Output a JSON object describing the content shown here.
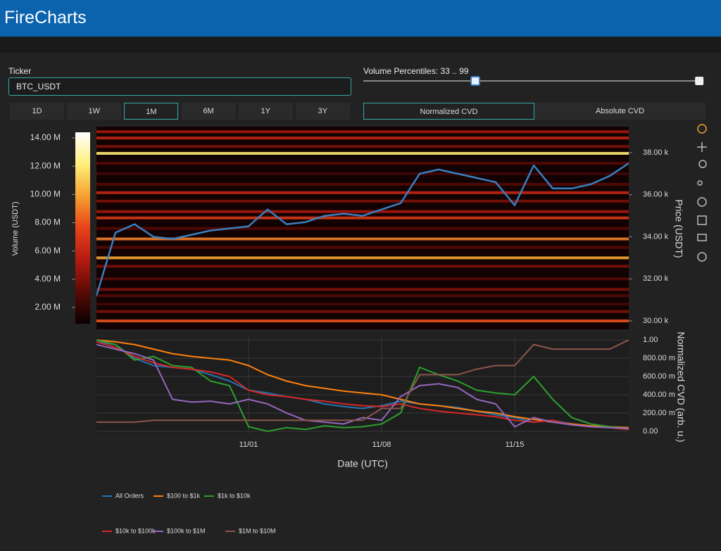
{
  "header": {
    "title": "FireCharts"
  },
  "controls": {
    "ticker_label": "Ticker",
    "ticker_value": "BTC_USDT",
    "timeframes": [
      "1D",
      "1W",
      "1M",
      "6M",
      "1Y",
      "3Y"
    ],
    "selected_timeframe": "1M",
    "slider": {
      "label": "Volume Percentiles: 33 .. 99",
      "low": 33,
      "high": 99,
      "min": 0,
      "max": 100
    },
    "cvd_modes": [
      "Normalized CVD",
      "Absolute CVD"
    ],
    "selected_cvd_mode": "Normalized CVD"
  },
  "chart_data": [
    {
      "type": "heatmap",
      "x": [
        "10/24",
        "10/25",
        "10/26",
        "10/27",
        "10/28",
        "10/29",
        "10/30",
        "10/31",
        "11/01",
        "11/02",
        "11/03",
        "11/04",
        "11/05",
        "11/06",
        "11/07",
        "11/08",
        "11/09",
        "11/10",
        "11/11",
        "11/12",
        "11/13",
        "11/14",
        "11/15",
        "11/16",
        "11/17",
        "11/18",
        "11/19",
        "11/20",
        "11/21"
      ],
      "xlim": [
        "10/24",
        "11/21"
      ],
      "y2_label": "Price (USDT)",
      "y2lim": [
        29600,
        39240
      ],
      "y2ticks": [
        {
          "value": 30000,
          "label": "30.00 k"
        },
        {
          "value": 32000,
          "label": "32.00 k"
        },
        {
          "value": 34000,
          "label": "34.00 k"
        },
        {
          "value": 36000,
          "label": "36.00 k"
        },
        {
          "value": 38000,
          "label": "38.00 k"
        }
      ],
      "colorbar": {
        "label": "Volume (USDT)",
        "lim": [
          850000,
          14400000
        ],
        "ticks": [
          {
            "value": 2000000,
            "label": "2.00 M"
          },
          {
            "value": 4000000,
            "label": "4.00 M"
          },
          {
            "value": 6000000,
            "label": "6.00 M"
          },
          {
            "value": 8000000,
            "label": "8.00 M"
          },
          {
            "value": 10000000,
            "label": "10.00 M"
          },
          {
            "value": 12000000,
            "label": "12.00 M"
          },
          {
            "value": 14000000,
            "label": "14.00 M"
          }
        ],
        "colorscale": [
          "#0a0000",
          "#5a0a05",
          "#b31b10",
          "#e8431a",
          "#f5a030",
          "#fff07a",
          "#ffffff"
        ]
      },
      "heatmap": {
        "prices": [
          39000,
          38700,
          38300,
          37970,
          37500,
          37000,
          36500,
          36100,
          35700,
          35200,
          34900,
          34400,
          33900,
          33500,
          33000,
          32600,
          32000,
          31500,
          31200,
          30800,
          30450,
          30000
        ],
        "volumes": [
          5000000,
          6000000,
          4000000,
          12000000,
          3000000,
          2500000,
          3000000,
          6000000,
          4000000,
          5000000,
          7000000,
          3000000,
          9000000,
          3000000,
          10000000,
          4000000,
          3000000,
          4000000,
          3000000,
          2500000,
          4000000,
          8000000
        ]
      },
      "series": [
        {
          "name": "Price",
          "color": "#3a7fc1",
          "axis": "y2",
          "values": [
            31200,
            34200,
            34600,
            34000,
            33900,
            34100,
            34300,
            34400,
            34500,
            35300,
            34600,
            34700,
            35000,
            35100,
            35000,
            35300,
            35600,
            37000,
            37200,
            37000,
            36800,
            36600,
            35500,
            37400,
            36300,
            36300,
            36500,
            36900,
            37500
          ]
        }
      ]
    },
    {
      "type": "line",
      "x": [
        "10/24",
        "10/25",
        "10/26",
        "10/27",
        "10/28",
        "10/29",
        "10/30",
        "10/31",
        "11/01",
        "11/02",
        "11/03",
        "11/04",
        "11/05",
        "11/06",
        "11/07",
        "11/08",
        "11/09",
        "11/10",
        "11/11",
        "11/12",
        "11/13",
        "11/14",
        "11/15",
        "11/16",
        "11/17",
        "11/18",
        "11/19",
        "11/20",
        "11/21"
      ],
      "xlim": [
        "10/24",
        "11/21"
      ],
      "xticks": [
        "11/01",
        "11/08",
        "11/15"
      ],
      "x_label": "Date (UTC)",
      "y2_label": "Normalized CVD (arb. u.)",
      "y2lim": [
        -0.024,
        1.024
      ],
      "y2ticks": [
        {
          "value": 0,
          "label": "0.00"
        },
        {
          "value": 0.2,
          "label": "200.00 m"
        },
        {
          "value": 0.4,
          "label": "400.00 m"
        },
        {
          "value": 0.6,
          "label": "600.00 m"
        },
        {
          "value": 0.8,
          "label": "800.00 m"
        },
        {
          "value": 1,
          "label": "1.00"
        }
      ],
      "grid": true,
      "series": [
        {
          "name": "All Orders",
          "color": "#1f77b4",
          "axis": "y2",
          "values": [
            0.98,
            0.95,
            0.8,
            0.72,
            0.7,
            0.68,
            0.62,
            0.55,
            0.45,
            0.42,
            0.38,
            0.35,
            0.3,
            0.27,
            0.25,
            0.28,
            0.33,
            0.3,
            0.28,
            0.26,
            0.22,
            0.18,
            0.15,
            0.1,
            0.12,
            0.08,
            0.06,
            0.04,
            0.03
          ]
        },
        {
          "name": "$100 to $1k",
          "color": "#ff7f0e",
          "axis": "y2",
          "values": [
            1.0,
            0.98,
            0.95,
            0.9,
            0.85,
            0.82,
            0.8,
            0.78,
            0.72,
            0.62,
            0.55,
            0.5,
            0.47,
            0.44,
            0.42,
            0.4,
            0.35,
            0.3,
            0.28,
            0.25,
            0.22,
            0.2,
            0.16,
            0.13,
            0.1,
            0.08,
            0.06,
            0.05,
            0.04
          ]
        },
        {
          "name": "$1k to $10k",
          "color": "#2ca02c",
          "axis": "y2",
          "values": [
            1.0,
            0.95,
            0.78,
            0.82,
            0.72,
            0.7,
            0.55,
            0.5,
            0.05,
            0.0,
            0.04,
            0.02,
            0.06,
            0.04,
            0.05,
            0.08,
            0.2,
            0.7,
            0.62,
            0.55,
            0.45,
            0.42,
            0.4,
            0.6,
            0.35,
            0.15,
            0.08,
            0.05,
            0.03
          ]
        },
        {
          "name": "$10k to $100k",
          "color": "#d62728",
          "axis": "y2",
          "values": [
            0.98,
            0.92,
            0.82,
            0.75,
            0.7,
            0.68,
            0.65,
            0.6,
            0.45,
            0.4,
            0.38,
            0.35,
            0.33,
            0.3,
            0.28,
            0.27,
            0.3,
            0.25,
            0.22,
            0.2,
            0.18,
            0.16,
            0.12,
            0.1,
            0.12,
            0.07,
            0.05,
            0.04,
            0.02
          ]
        },
        {
          "name": "$100k to $1M",
          "color": "#9467bd",
          "axis": "y2",
          "values": [
            0.95,
            0.9,
            0.85,
            0.78,
            0.35,
            0.32,
            0.33,
            0.3,
            0.35,
            0.3,
            0.2,
            0.12,
            0.1,
            0.08,
            0.15,
            0.12,
            0.38,
            0.5,
            0.52,
            0.48,
            0.35,
            0.3,
            0.05,
            0.15,
            0.1,
            0.07,
            0.05,
            0.04,
            0.03
          ]
        },
        {
          "name": "$1M to $10M",
          "color": "#8c564b",
          "axis": "y2",
          "values": [
            0.1,
            0.1,
            0.1,
            0.12,
            0.12,
            0.12,
            0.12,
            0.12,
            0.12,
            0.12,
            0.12,
            0.12,
            0.12,
            0.12,
            0.12,
            0.25,
            0.25,
            0.62,
            0.62,
            0.62,
            0.68,
            0.72,
            0.72,
            0.95,
            0.9,
            0.9,
            0.9,
            0.9,
            1.0
          ]
        }
      ]
    }
  ]
}
